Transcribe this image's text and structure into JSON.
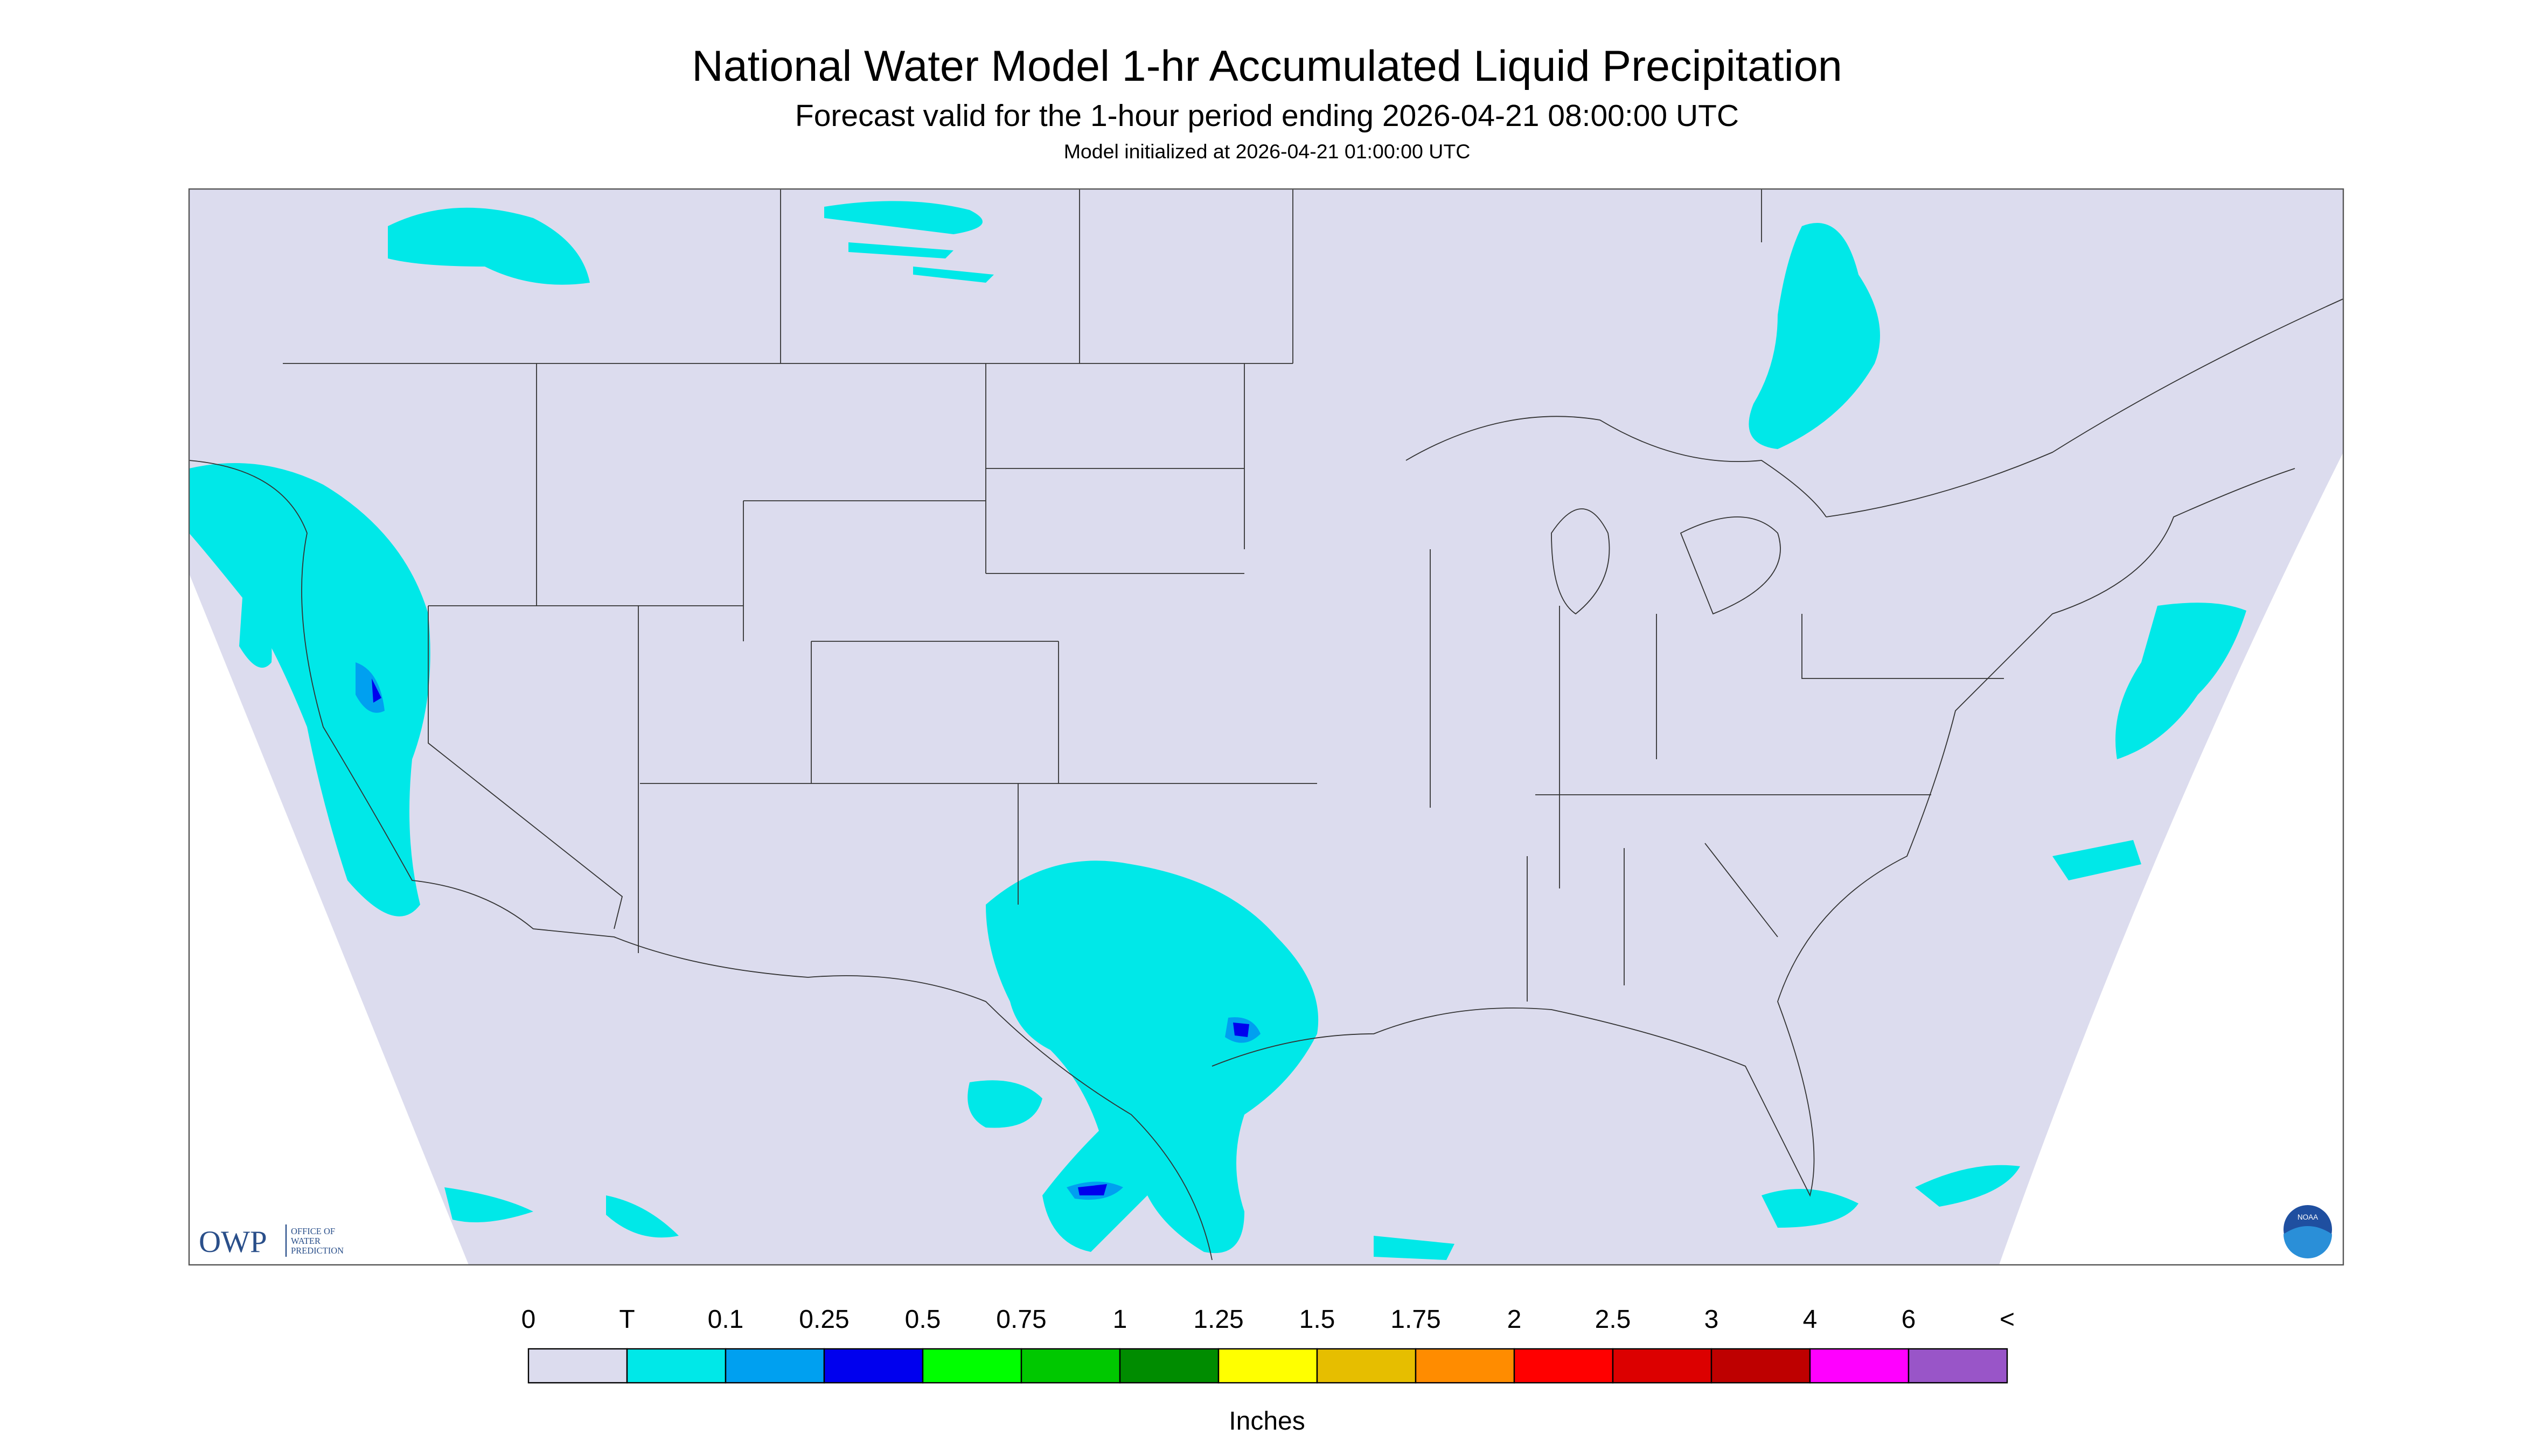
{
  "header": {
    "title": "National Water Model 1-hr Accumulated Liquid Precipitation",
    "subtitle": "Forecast valid for the 1-hour period ending 2026-04-21 08:00:00 UTC",
    "note": "Model initialized at 2026-04-21 01:00:00 UTC"
  },
  "legend": {
    "labels": [
      "0",
      "T",
      "0.1",
      "0.25",
      "0.5",
      "0.75",
      "1",
      "1.25",
      "1.5",
      "1.75",
      "2",
      "2.5",
      "3",
      "4",
      "6",
      "<"
    ],
    "colors": [
      "#dcdcee",
      "#00e8e8",
      "#00a0f0",
      "#0000ee",
      "#00ff00",
      "#00c800",
      "#008c00",
      "#ffff00",
      "#e6be00",
      "#ff8c00",
      "#ff0000",
      "#dc0000",
      "#be0000",
      "#ff00ff",
      "#9955c8"
    ],
    "unit": "Inches"
  },
  "logos": {
    "owp": "OWP",
    "owp_text": [
      "OFFICE OF",
      "WATER",
      "PREDICTION"
    ],
    "noaa": "NOAA"
  }
}
